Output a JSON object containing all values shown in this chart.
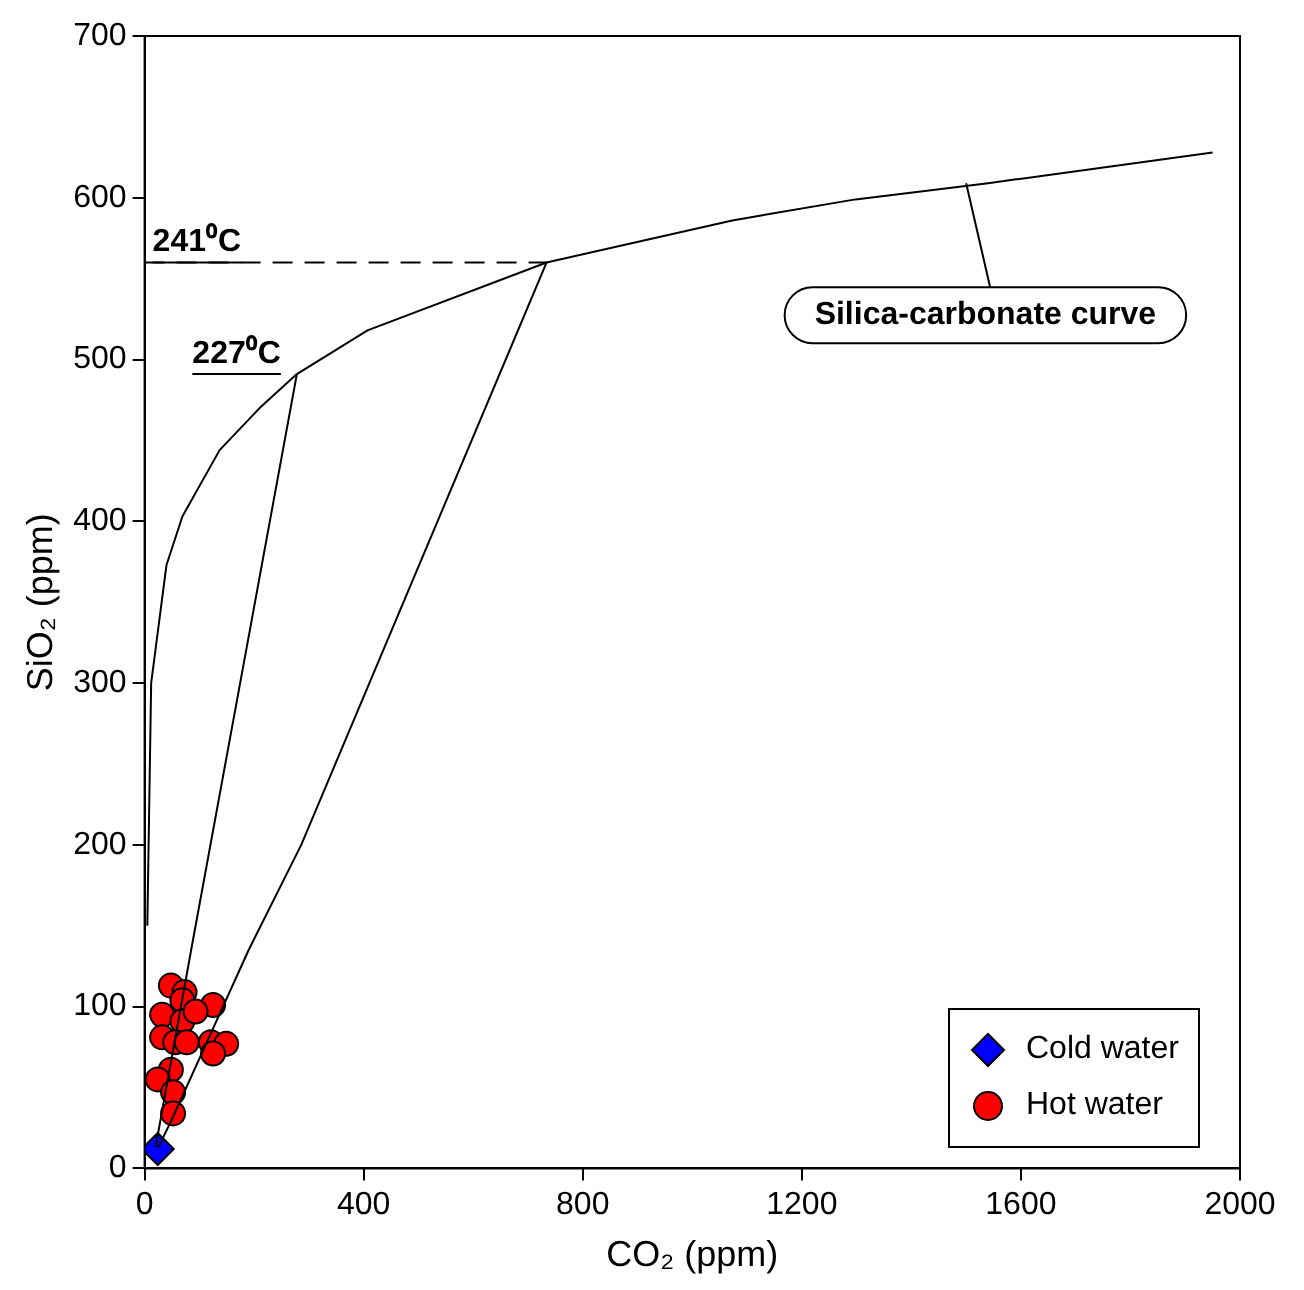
{
  "chart_data": {
    "type": "scatter",
    "xlabel": "CO₂ (ppm)",
    "ylabel": "SiO₂ (ppm)",
    "xlim": [
      0,
      2000
    ],
    "xticks": [
      0,
      400,
      800,
      1200,
      1600,
      2000
    ],
    "ylim": [
      0,
      700
    ],
    "yticks": [
      0,
      100,
      200,
      300,
      400,
      500,
      600,
      700
    ],
    "grid": false,
    "legend": "bottom right",
    "series": [
      {
        "type": "line",
        "color": "#000000",
        "marker": "none",
        "x": [
          5,
          12,
          40,
          69,
          137,
          210,
          278,
          407,
          734,
          1073,
          1298,
          1540,
          1950
        ],
        "values": [
          150,
          300,
          373,
          403,
          444,
          470,
          491,
          518,
          560,
          586,
          599,
          609,
          628
        ]
      },
      {
        "type": "line",
        "color": "#000000",
        "marker": "none",
        "x": [
          278,
          85,
          20
        ],
        "values": [
          491,
          135,
          13
        ]
      },
      {
        "type": "line",
        "color": "#000000",
        "marker": "none",
        "x": [
          734,
          286,
          190,
          48,
          25
        ],
        "values": [
          560,
          200,
          135,
          29,
          13
        ]
      },
      {
        "type": "line",
        "color": "#000000",
        "marker": "none",
        "line_style": "dashed",
        "x": [
          0,
          734
        ],
        "values": [
          560,
          560
        ]
      },
      {
        "type": "scatter",
        "name": "Cold water",
        "color": "#0000ff",
        "marker": "diamond",
        "x": [
          24
        ],
        "values": [
          12
        ]
      },
      {
        "type": "scatter",
        "name": "Hot water",
        "color": "#ff0000",
        "marker": "circle",
        "x": [
          48,
          73,
          69,
          125,
          32,
          69,
          93,
          32,
          56,
          77,
          121,
          149,
          125,
          48,
          24,
          52,
          52
        ],
        "values": [
          113,
          109,
          104,
          101,
          95,
          91,
          97,
          81,
          78,
          78,
          78,
          77,
          71,
          61,
          55,
          47,
          34
        ]
      }
    ],
    "annotations": [
      {
        "text": "241⁰C",
        "x": 0,
        "y": 560
      },
      {
        "text": "227⁰C",
        "x": 278,
        "y": 491
      },
      {
        "text": "Silica-carbonate curve",
        "x": 1500,
        "y": 609
      }
    ]
  }
}
